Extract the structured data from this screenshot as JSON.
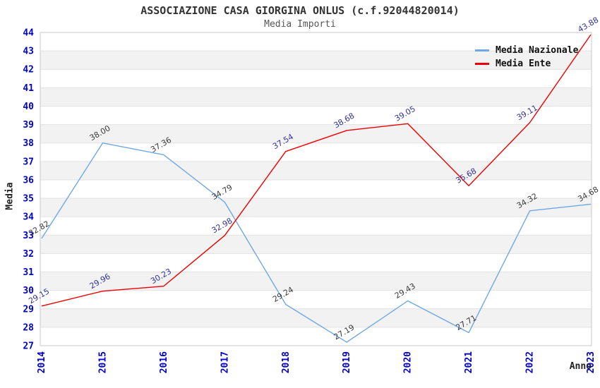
{
  "header": {
    "title": "ASSOCIAZIONE CASA GIORGINA ONLUS (c.f.92044820014)",
    "subtitle": "Media Importi"
  },
  "legend": {
    "items": [
      {
        "label": "Media Nazionale",
        "color": "#70a8e2"
      },
      {
        "label": "Media Ente",
        "color": "#ee0000"
      }
    ]
  },
  "axes": {
    "y_title": "Media",
    "x_title": "Anno",
    "tick_color": "#0000cc"
  },
  "chart_data": {
    "type": "line",
    "title": "ASSOCIAZIONE CASA GIORGINA ONLUS (c.f.92044820014)",
    "subtitle": "Media Importi",
    "xlabel": "Anno",
    "ylabel": "Media",
    "categories": [
      "2014",
      "2015",
      "2016",
      "2017",
      "2018",
      "2019",
      "2020",
      "2021",
      "2022",
      "2023"
    ],
    "series": [
      {
        "name": "Media Nazionale",
        "color": "#70a8e2",
        "label_color": "#3a3a3a",
        "values": [
          32.82,
          38.0,
          37.36,
          34.79,
          29.24,
          27.19,
          29.43,
          27.71,
          34.32,
          34.68
        ]
      },
      {
        "name": "Media Ente",
        "color": "#ee0000",
        "label_color": "#333399",
        "values": [
          29.15,
          29.96,
          30.23,
          32.98,
          37.54,
          38.68,
          39.05,
          35.68,
          39.11,
          43.88
        ]
      }
    ],
    "ylim": [
      27,
      44
    ],
    "ytick_step": 1,
    "grid": true,
    "banded_background": true,
    "band_color": "#f2f2f2",
    "grid_color": "#e2e2e2",
    "frame_color": "#c9c9c9",
    "legend_position": "top-right"
  }
}
